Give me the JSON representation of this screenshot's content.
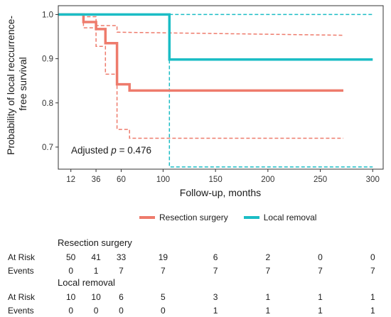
{
  "chart_data": {
    "type": "line",
    "subtype": "kaplan-meier",
    "title": "",
    "xlabel": "Follow-up, months",
    "ylabel": "Probability of local reccurrence-free survival",
    "xlim": [
      0,
      310
    ],
    "ylim": [
      0.65,
      1.02
    ],
    "xticks": [
      12,
      36,
      60,
      100,
      150,
      200,
      250,
      300
    ],
    "yticks": [
      0.7,
      0.8,
      0.9,
      1.0
    ],
    "ytick_labels": [
      "0.7",
      "0.8",
      "0.9",
      "1.0"
    ],
    "grid": false,
    "legend_position": "bottom",
    "annotation": {
      "prefix": "Adjusted ",
      "italic": "p",
      "suffix": " = 0.476"
    },
    "series": [
      {
        "name": "Resection surgery",
        "color": "#ee7b6c",
        "line_style": "solid",
        "points": [
          [
            0,
            1.0
          ],
          [
            24,
            1.0
          ],
          [
            24,
            0.983
          ],
          [
            36,
            0.983
          ],
          [
            36,
            0.967
          ],
          [
            45,
            0.967
          ],
          [
            45,
            0.935
          ],
          [
            56,
            0.935
          ],
          [
            56,
            0.842
          ],
          [
            68,
            0.842
          ],
          [
            68,
            0.828
          ],
          [
            272,
            0.828
          ]
        ]
      },
      {
        "name": "",
        "color": "#ee7b6c",
        "line_style": "dashed",
        "points": [
          [
            24,
            1.0
          ],
          [
            24,
            0.995
          ],
          [
            36,
            0.995
          ],
          [
            36,
            0.975
          ],
          [
            56,
            0.975
          ],
          [
            56,
            0.96
          ],
          [
            272,
            0.953
          ]
        ]
      },
      {
        "name": "",
        "color": "#ee7b6c",
        "line_style": "dashed",
        "points": [
          [
            24,
            0.995
          ],
          [
            24,
            0.97
          ],
          [
            36,
            0.97
          ],
          [
            36,
            0.928
          ],
          [
            45,
            0.928
          ],
          [
            45,
            0.865
          ],
          [
            56,
            0.865
          ],
          [
            56,
            0.74
          ],
          [
            68,
            0.74
          ],
          [
            68,
            0.72
          ],
          [
            272,
            0.72
          ]
        ]
      },
      {
        "name": "Local removal",
        "color": "#1bbdc5",
        "line_style": "solid",
        "points": [
          [
            0,
            1.0
          ],
          [
            106,
            1.0
          ],
          [
            106,
            0.898
          ],
          [
            300,
            0.898
          ]
        ]
      },
      {
        "name": "",
        "color": "#1bbdc5",
        "line_style": "dashed",
        "points": [
          [
            106,
            1.0
          ],
          [
            300,
            1.0
          ]
        ]
      },
      {
        "name": "",
        "color": "#1bbdc5",
        "line_style": "dashed",
        "points": [
          [
            106,
            1.0
          ],
          [
            106,
            0.655
          ],
          [
            300,
            0.655
          ]
        ]
      }
    ]
  },
  "risk_table": {
    "groups": [
      {
        "title": "Resection surgery",
        "rows": [
          {
            "label": "At Risk",
            "values": [
              "50",
              "41",
              "33",
              "19",
              "6",
              "2",
              "0",
              "0"
            ]
          },
          {
            "label": "Events",
            "values": [
              "0",
              "1",
              "7",
              "7",
              "7",
              "7",
              "7",
              "7"
            ]
          }
        ]
      },
      {
        "title": "Local removal",
        "rows": [
          {
            "label": "At Risk",
            "values": [
              "10",
              "10",
              "6",
              "5",
              "3",
              "1",
              "1",
              "1"
            ]
          },
          {
            "label": "Events",
            "values": [
              "0",
              "0",
              "0",
              "0",
              "1",
              "1",
              "1",
              "1"
            ]
          }
        ]
      }
    ]
  }
}
